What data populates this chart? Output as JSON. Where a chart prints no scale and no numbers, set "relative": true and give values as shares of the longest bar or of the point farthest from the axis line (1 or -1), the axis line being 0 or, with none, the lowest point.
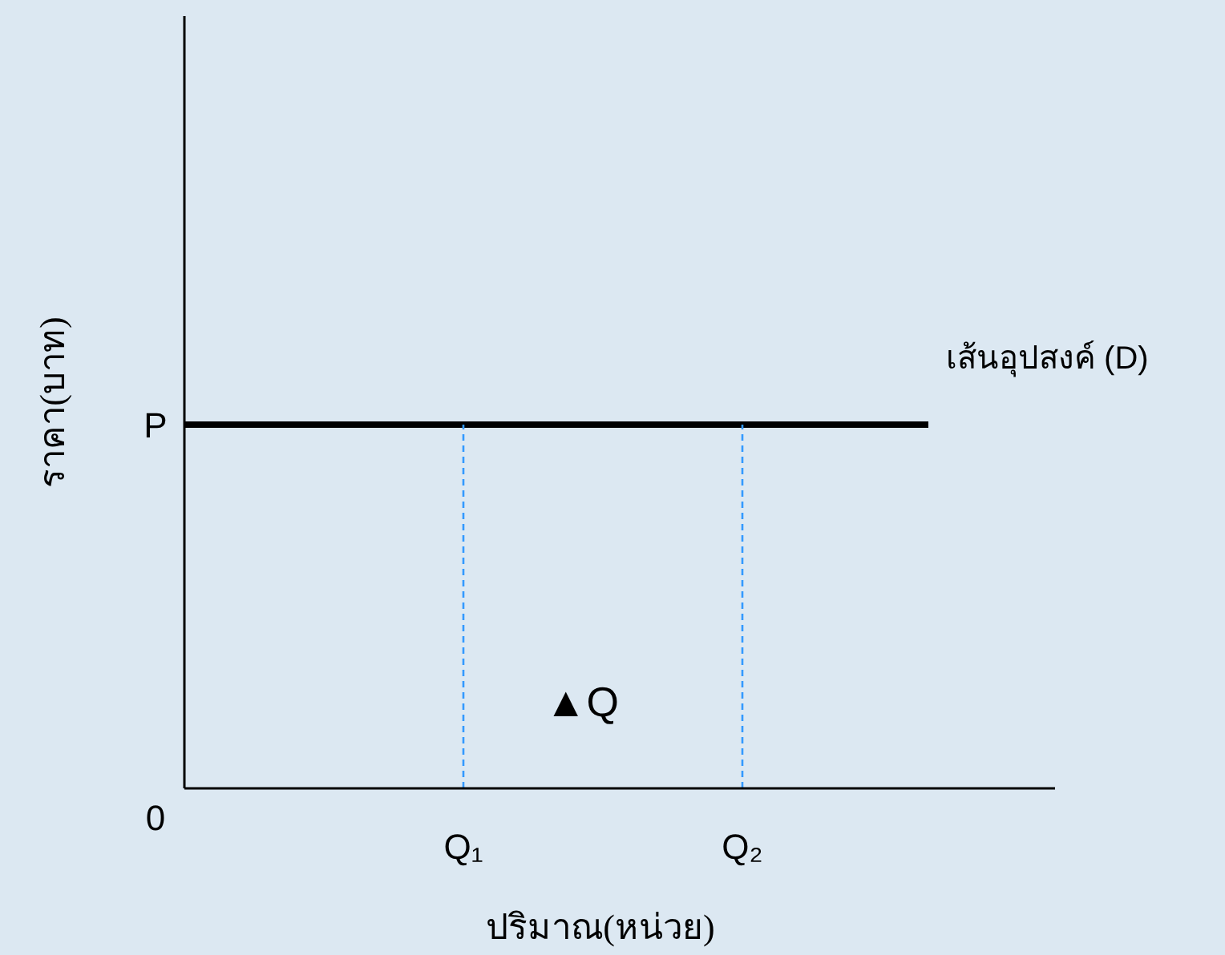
{
  "chart_data": {
    "type": "line",
    "relative": true,
    "xlabel": "ปริมาณ(หน่วย)",
    "ylabel": "ราคา(บาท)",
    "categories": [
      "0",
      null,
      null,
      "Q₁",
      null,
      null,
      "Q₂",
      null,
      null,
      null
    ],
    "series": [
      {
        "color": "#000000",
        "values": [
          1,
          1,
          1,
          1,
          1,
          1,
          1,
          1,
          1,
          null
        ],
        "line_style": "solid"
      },
      {
        "color": "#3399ff",
        "x": [
          "Q₁",
          "Q₁"
        ],
        "values": [
          0,
          1
        ],
        "line_style": "dashed"
      },
      {
        "color": "#3399ff",
        "x": [
          "Q₂",
          "Q₂"
        ],
        "values": [
          0,
          1
        ],
        "line_style": "dashed"
      }
    ],
    "annotations": [
      "P",
      "เส้นอุปสงค์ (D)",
      "▲Q"
    ],
    "grid": false
  }
}
